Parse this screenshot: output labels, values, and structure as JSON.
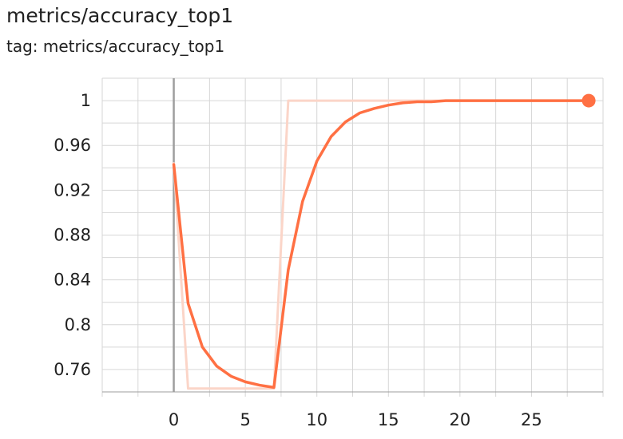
{
  "card": {
    "title": "metrics/accuracy_top1",
    "tag": "tag: metrics/accuracy_top1"
  },
  "chart_data": {
    "type": "line",
    "title": "metrics/accuracy_top1",
    "xlabel": "",
    "ylabel": "",
    "xlim": [
      -5,
      30
    ],
    "ylim": [
      0.74,
      1.02
    ],
    "x_ticks": [
      0,
      5,
      10,
      15,
      20,
      25
    ],
    "x_tick_labels": [
      "0",
      "5",
      "10",
      "15",
      "20",
      "25"
    ],
    "y_ticks": [
      0.76,
      0.8,
      0.84,
      0.88,
      0.92,
      0.96,
      1
    ],
    "y_tick_labels": [
      "0.76",
      "0.8",
      "0.84",
      "0.88",
      "0.92",
      "0.96",
      "1"
    ],
    "grid": true,
    "legend": "none",
    "series": [
      {
        "role": "raw",
        "color": "#fbd5c8",
        "x": [
          0,
          1,
          2,
          3,
          4,
          5,
          6,
          7,
          8,
          9,
          10,
          11,
          12,
          13,
          14,
          15,
          16,
          17,
          18,
          19,
          20,
          21,
          22,
          23,
          24,
          25,
          26,
          27,
          28,
          29
        ],
        "values": [
          0.944,
          0.743,
          0.743,
          0.743,
          0.743,
          0.743,
          0.743,
          0.743,
          1,
          1,
          1,
          1,
          1,
          1,
          1,
          1,
          1,
          1,
          1,
          1,
          1,
          1,
          1,
          1,
          1,
          1,
          1,
          1,
          1,
          1
        ]
      },
      {
        "role": "smoothed",
        "color": "#ff7043",
        "x": [
          0,
          1,
          2,
          3,
          4,
          5,
          6,
          7,
          8,
          9,
          10,
          11,
          12,
          13,
          14,
          15,
          16,
          17,
          18,
          19,
          20,
          21,
          22,
          23,
          24,
          25,
          26,
          27,
          28,
          29
        ],
        "values": [
          0.943,
          0.819,
          0.78,
          0.763,
          0.754,
          0.749,
          0.746,
          0.744,
          0.849,
          0.91,
          0.946,
          0.968,
          0.981,
          0.989,
          0.993,
          0.996,
          0.998,
          0.999,
          0.999,
          1,
          1,
          1,
          1,
          1,
          1,
          1,
          1,
          1,
          1,
          1
        ]
      }
    ]
  }
}
